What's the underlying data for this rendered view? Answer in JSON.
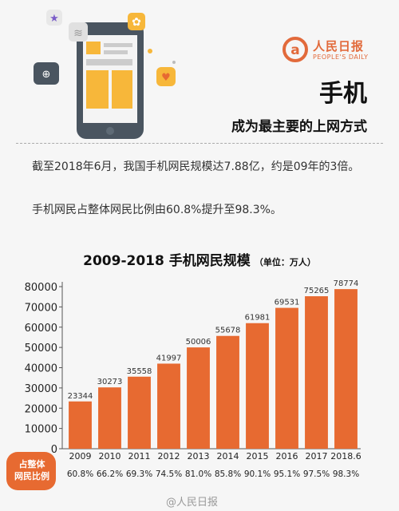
{
  "brand": {
    "name": "人民日报",
    "sub": "PEOPLE'S DAILY"
  },
  "title": {
    "main": "手机",
    "sub": "成为最主要的上网方式"
  },
  "paragraphs": [
    "截至2018年6月，我国手机网民规模达7.88亿，约是09年的3倍。",
    "手机网民占整体网民比例由60.8%提升至98.3%。"
  ],
  "colors": {
    "bar": "#e76a31",
    "badge": "#e76a31",
    "text": "#222222"
  },
  "chart_data": {
    "type": "bar",
    "title": "2009-2018 手机网民规模",
    "unit": "（单位：万人）",
    "categories": [
      "2009",
      "2010",
      "2011",
      "2012",
      "2013",
      "2014",
      "2015",
      "2016",
      "2017",
      "2018.6"
    ],
    "values": [
      23344,
      30273,
      35558,
      41997,
      50006,
      55678,
      61981,
      69531,
      75265,
      78774
    ],
    "yticks": [
      0,
      10000,
      20000,
      30000,
      40000,
      50000,
      60000,
      70000,
      80000
    ],
    "ylim": [
      0,
      80000
    ],
    "ratio_label": [
      "占整体",
      "网民比例"
    ],
    "ratios": [
      "60.8%",
      "66.2%",
      "69.3%",
      "74.5%",
      "81.0%",
      "85.8%",
      "90.1%",
      "95.1%",
      "97.5%",
      "98.3%"
    ]
  },
  "watermark": "@人民日报"
}
